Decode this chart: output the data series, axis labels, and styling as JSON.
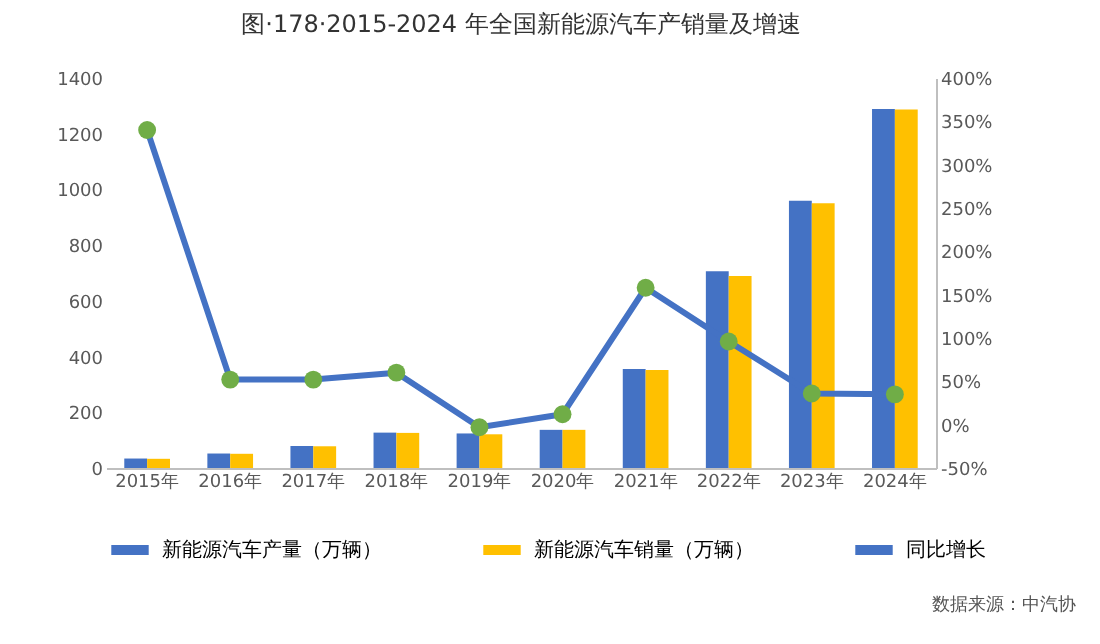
{
  "chart_data": {
    "type": "bar",
    "title": "图·178·2015-2024 年全国新能源汽车产销量及增速",
    "categories": [
      "2015年",
      "2016年",
      "2017年",
      "2018年",
      "2019年",
      "2020年",
      "2021年",
      "2022年",
      "2023年",
      "2024年"
    ],
    "series": [
      {
        "name": "新能源汽车产量（万辆）",
        "color": "#4472c4",
        "values": [
          34,
          52,
          79,
          127,
          124,
          137,
          355,
          706,
          959,
          1289
        ]
      },
      {
        "name": "新能源汽车销量（万辆）",
        "color": "#ffc000",
        "values": [
          33,
          51,
          78,
          126,
          121,
          137,
          352,
          689,
          950,
          1287
        ]
      },
      {
        "name": "同比增长",
        "type": "line",
        "axis": "y2",
        "color": "#4472c4",
        "marker": "circle",
        "values": [
          340,
          52,
          52,
          60,
          -3,
          12,
          158,
          96,
          36,
          35
        ]
      }
    ],
    "ylim": [
      0,
      1400
    ],
    "yticks": [
      0,
      200,
      400,
      600,
      800,
      1000,
      1200,
      1400
    ],
    "y2lim": [
      -50,
      400
    ],
    "y2ticks": [
      {
        "value": -50,
        "label": "-50%"
      },
      {
        "value": 0,
        "label": "0%"
      },
      {
        "value": 50,
        "label": "50%"
      },
      {
        "value": 100,
        "label": "100%"
      },
      {
        "value": 150,
        "label": "150%"
      },
      {
        "value": 200,
        "label": "200%"
      },
      {
        "value": 250,
        "label": "250%"
      },
      {
        "value": 300,
        "label": "300%"
      },
      {
        "value": 350,
        "label": "350%"
      },
      {
        "value": 400,
        "label": "400%"
      }
    ],
    "legend": "bottom",
    "grid": false,
    "annotations": [
      "数据来源：中汽协"
    ]
  }
}
